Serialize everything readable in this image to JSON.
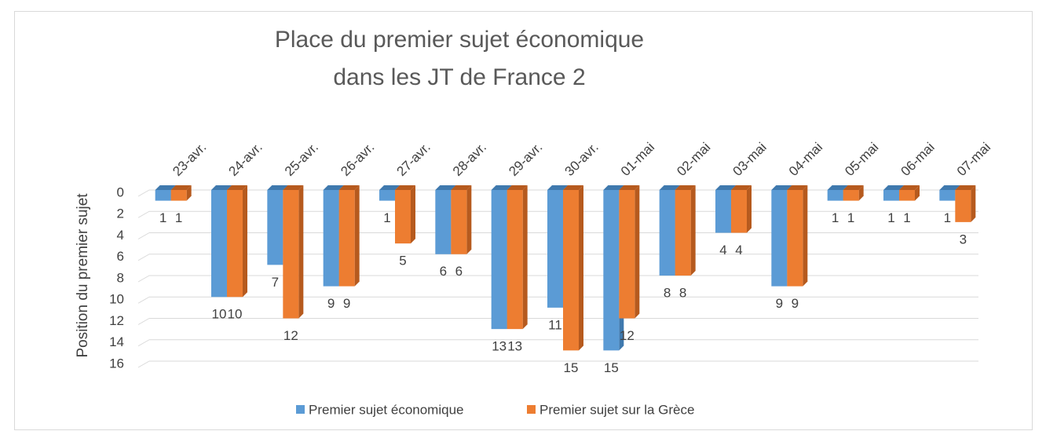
{
  "chart_data": {
    "type": "bar3d",
    "title": [
      "Place du premier sujet économique",
      "dans les JT de France 2"
    ],
    "y_label": "Position du premier sujet",
    "categories": [
      "23-avr.",
      "24-avr.",
      "25-avr.",
      "26-avr.",
      "27-avr.",
      "28-avr.",
      "29-avr.",
      "30-avr.",
      "01-mai",
      "02-mai",
      "03-mai",
      "04-mai",
      "05-mai",
      "06-mai",
      "07-mai"
    ],
    "series": [
      {
        "name": "Premier sujet économique",
        "color": "#5b9bd5",
        "side": "#3f79ae",
        "values": [
          1,
          10,
          7,
          9,
          1,
          6,
          13,
          11,
          15,
          8,
          4,
          9,
          1,
          1,
          1
        ]
      },
      {
        "name": "Premier sujet sur la Grèce",
        "color": "#ed7d31",
        "side": "#b65a1e",
        "values": [
          1,
          10,
          12,
          9,
          5,
          6,
          13,
          15,
          12,
          8,
          4,
          9,
          1,
          1,
          3
        ]
      }
    ],
    "ylim": [
      0,
      16
    ],
    "yticks": [
      0,
      2,
      4,
      6,
      8,
      10,
      12,
      14,
      16
    ],
    "y_inverted": true,
    "grid": true,
    "legend": "bottom"
  }
}
